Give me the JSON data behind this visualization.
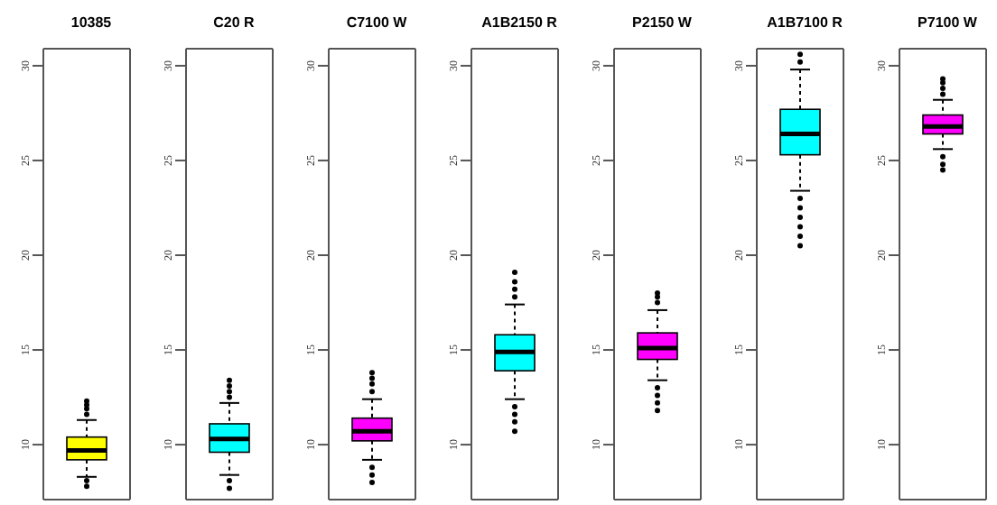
{
  "chart_data": [
    {
      "type": "box",
      "title": "10385",
      "categories": [
        null
      ],
      "color": "#ffff00",
      "ylim": [
        7.1,
        30.9
      ],
      "yticks": [
        10,
        15,
        20,
        25,
        30
      ],
      "boxes": [
        {
          "low": 8.3,
          "q1": 9.2,
          "median": 9.7,
          "q3": 10.4,
          "high": 11.3,
          "outliers": [
            11.6,
            11.9,
            12.1,
            12.3,
            8.1,
            7.8
          ]
        }
      ]
    },
    {
      "type": "box",
      "title": "C20 R",
      "categories": [
        null
      ],
      "color": "#00ffff",
      "ylim": [
        7.1,
        30.9
      ],
      "yticks": [
        10,
        15,
        20,
        25,
        30
      ],
      "boxes": [
        {
          "low": 8.4,
          "q1": 9.6,
          "median": 10.3,
          "q3": 11.1,
          "high": 12.2,
          "outliers": [
            12.5,
            12.8,
            13.1,
            13.4,
            8.1,
            7.7
          ]
        }
      ]
    },
    {
      "type": "box",
      "title": "C7100 W",
      "categories": [
        null
      ],
      "color": "#ff00ff",
      "ylim": [
        7.1,
        30.9
      ],
      "yticks": [
        10,
        15,
        20,
        25,
        30
      ],
      "boxes": [
        {
          "low": 9.2,
          "q1": 10.2,
          "median": 10.7,
          "q3": 11.4,
          "high": 12.4,
          "outliers": [
            12.8,
            13.2,
            13.5,
            13.8,
            8.8,
            8.4,
            8.0
          ]
        }
      ]
    },
    {
      "type": "box",
      "title": "A1B2150 R",
      "categories": [
        null
      ],
      "color": "#00ffff",
      "ylim": [
        7.1,
        30.9
      ],
      "yticks": [
        10,
        15,
        20,
        25,
        30
      ],
      "boxes": [
        {
          "low": 12.4,
          "q1": 13.9,
          "median": 14.9,
          "q3": 15.8,
          "high": 17.4,
          "outliers": [
            17.8,
            18.2,
            18.6,
            19.1,
            12.0,
            11.6,
            11.2,
            10.7
          ]
        }
      ]
    },
    {
      "type": "box",
      "title": "P2150 W",
      "categories": [
        null
      ],
      "color": "#ff00ff",
      "ylim": [
        7.1,
        30.9
      ],
      "yticks": [
        10,
        15,
        20,
        25,
        30
      ],
      "boxes": [
        {
          "low": 13.4,
          "q1": 14.5,
          "median": 15.1,
          "q3": 15.9,
          "high": 17.1,
          "outliers": [
            17.5,
            17.8,
            18.0,
            13.0,
            12.6,
            12.2,
            11.8
          ]
        }
      ]
    },
    {
      "type": "box",
      "title": "A1B7100 R",
      "categories": [
        null
      ],
      "color": "#00ffff",
      "ylim": [
        7.1,
        30.9
      ],
      "yticks": [
        10,
        15,
        20,
        25,
        30
      ],
      "boxes": [
        {
          "low": 23.4,
          "q1": 25.3,
          "median": 26.4,
          "q3": 27.7,
          "high": 29.8,
          "outliers": [
            30.2,
            30.6,
            23.0,
            22.5,
            22.0,
            21.5,
            21.0,
            20.5
          ]
        }
      ]
    },
    {
      "type": "box",
      "title": "P7100 W",
      "categories": [
        null
      ],
      "color": "#ff00ff",
      "ylim": [
        7.1,
        30.9
      ],
      "yticks": [
        10,
        15,
        20,
        25,
        30
      ],
      "boxes": [
        {
          "low": 25.6,
          "q1": 26.4,
          "median": 26.8,
          "q3": 27.4,
          "high": 28.2,
          "outliers": [
            28.5,
            28.8,
            29.1,
            29.3,
            25.2,
            24.8,
            24.5
          ]
        }
      ]
    }
  ]
}
